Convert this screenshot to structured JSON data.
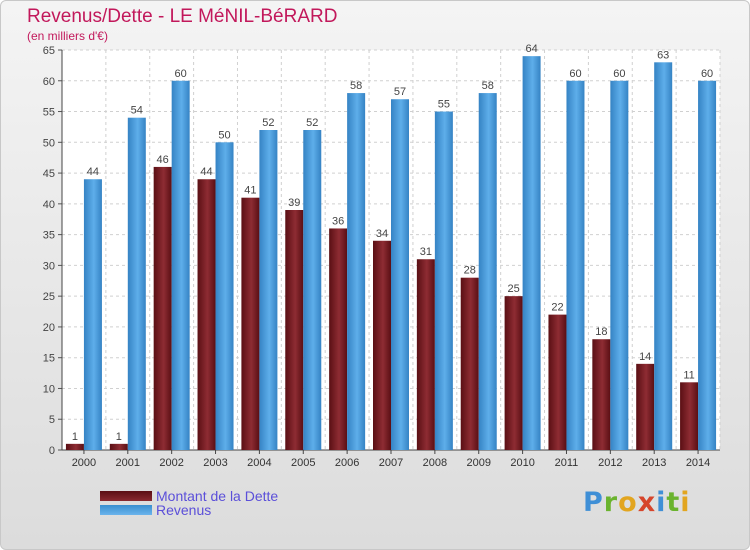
{
  "chart_data": {
    "type": "bar",
    "title": "Revenus/Dette - LE MéNIL-BéRARD",
    "subtitle": "(en milliers d'€)",
    "categories": [
      "2000",
      "2001",
      "2002",
      "2003",
      "2004",
      "2005",
      "2006",
      "2007",
      "2008",
      "2009",
      "2010",
      "2011",
      "2012",
      "2013",
      "2014"
    ],
    "series": [
      {
        "name": "Montant de la Dette",
        "color": "#7a1a1f",
        "values": [
          1,
          1,
          46,
          44,
          41,
          39,
          36,
          34,
          31,
          28,
          25,
          22,
          18,
          14,
          11
        ]
      },
      {
        "name": "Revenus",
        "color": "#4a9fe0",
        "values": [
          44,
          54,
          60,
          50,
          52,
          52,
          58,
          57,
          55,
          58,
          64,
          60,
          60,
          63,
          60
        ]
      }
    ],
    "ylim": [
      0,
      65
    ],
    "yticks": [
      0,
      5,
      10,
      15,
      20,
      25,
      30,
      35,
      40,
      45,
      50,
      55,
      60,
      65
    ],
    "grid": true,
    "legend_position": "bottom-left"
  },
  "logo": {
    "text": "Proxiti"
  }
}
